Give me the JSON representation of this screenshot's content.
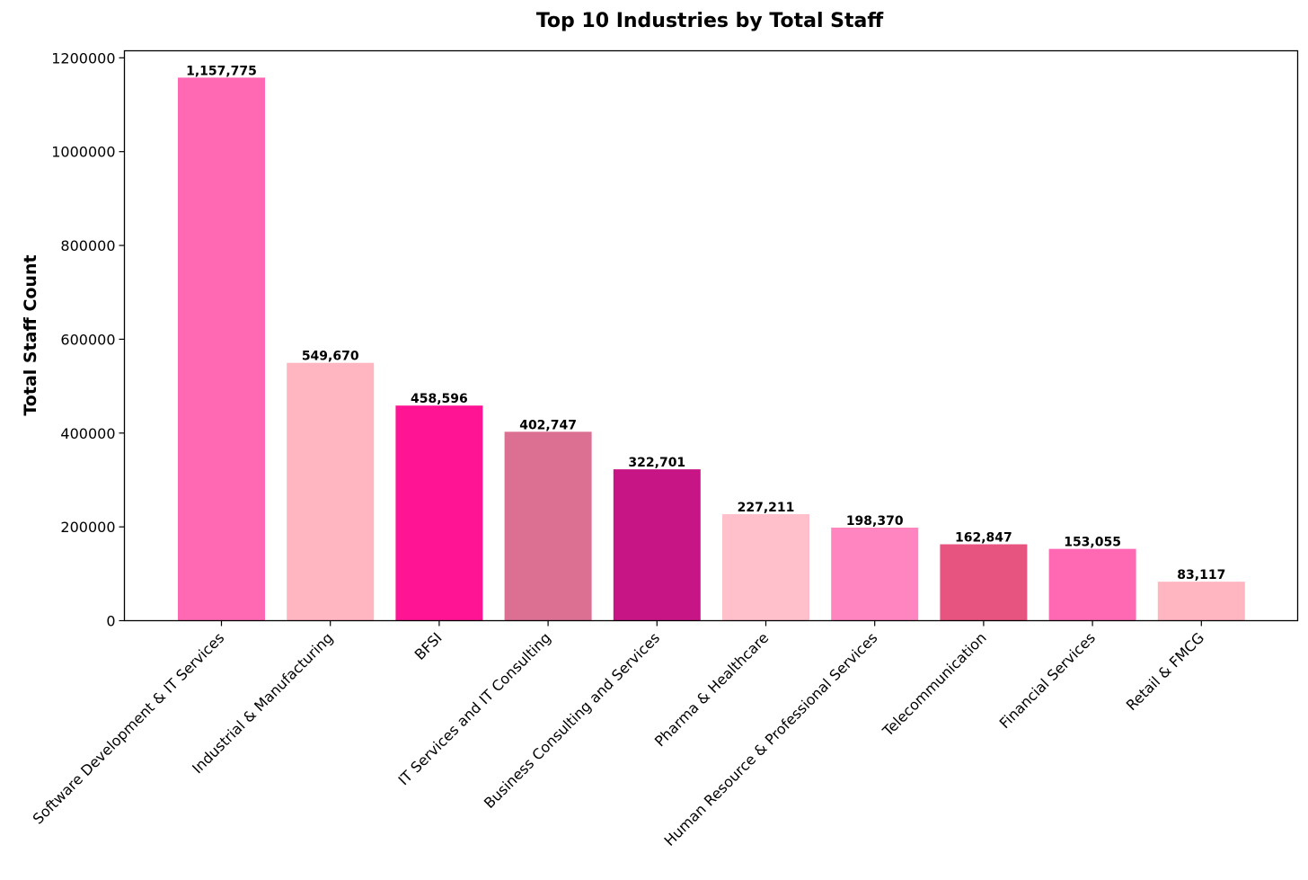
{
  "chart_data": {
    "type": "bar",
    "title": "Top 10 Industries by Total Staff",
    "xlabel": "",
    "ylabel": "Total Staff Count",
    "ylim": [
      0,
      1215000
    ],
    "yticks": [
      0,
      200000,
      400000,
      600000,
      800000,
      1000000,
      1200000
    ],
    "ytick_labels": [
      "0",
      "200000",
      "400000",
      "600000",
      "800000",
      "1000000",
      "1200000"
    ],
    "grid": false,
    "categories": [
      "Software Development & IT Services",
      "Industrial & Manufacturing",
      "BFSI",
      "IT Services and IT Consulting",
      "Business Consulting and Services",
      "Pharma & Healthcare",
      "Human Resource & Professional Services",
      "Telecommunication",
      "Financial Services",
      "Retail & FMCG"
    ],
    "values": [
      1157775,
      549670,
      458596,
      402747,
      322701,
      227211,
      198370,
      162847,
      153055,
      83117
    ],
    "value_labels": [
      "1,157,775",
      "549,670",
      "458,596",
      "402,747",
      "322,701",
      "227,211",
      "198,370",
      "162,847",
      "153,055",
      "83,117"
    ],
    "colors": [
      "#FF69B4",
      "#FFB6C1",
      "#FF1493",
      "#DB7093",
      "#C71585",
      "#FFC0CB",
      "#FF85C0",
      "#E75480",
      "#FF69B4",
      "#FFB6C1"
    ]
  }
}
